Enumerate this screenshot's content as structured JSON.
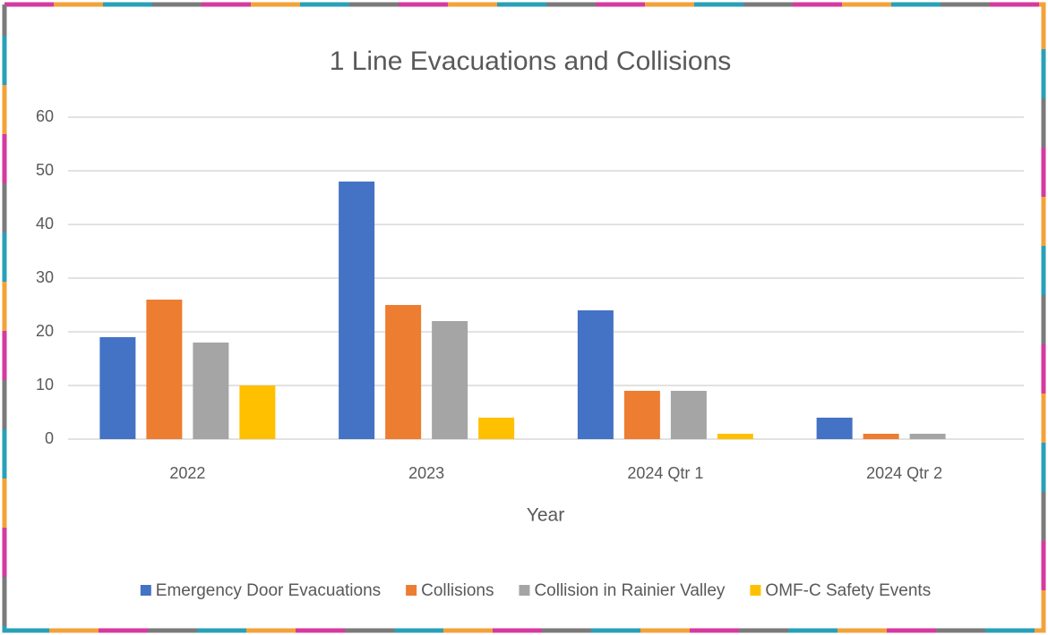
{
  "chart_data": {
    "type": "bar",
    "title": "1 Line Evacuations and Collisions",
    "x_label": "Year",
    "categories": [
      "2022",
      "2023",
      "2024 Qtr 1",
      "2024 Qtr 2"
    ],
    "series": [
      {
        "name": "Emergency Door Evacuations",
        "color": "#4472c4",
        "values": [
          19,
          48,
          24,
          4
        ]
      },
      {
        "name": "Collisions",
        "color": "#ed7d31",
        "values": [
          26,
          25,
          9,
          1
        ]
      },
      {
        "name": "Collision in Rainier Valley",
        "color": "#a5a5a5",
        "values": [
          18,
          22,
          9,
          1
        ]
      },
      {
        "name": "OMF-C Safety Events",
        "color": "#ffc000",
        "values": [
          10,
          4,
          1,
          0
        ]
      }
    ],
    "ylim": [
      0,
      60
    ],
    "yticks": [
      0,
      10,
      20,
      30,
      40,
      50,
      60
    ],
    "grid": true,
    "legend": "bottom"
  }
}
